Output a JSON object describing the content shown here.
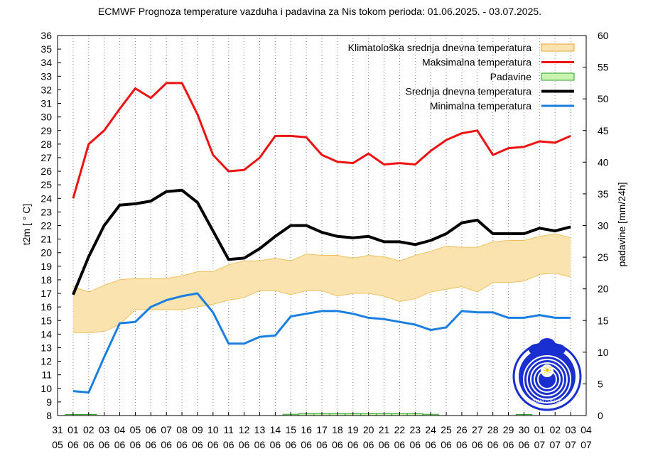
{
  "chart_data": {
    "type": "line",
    "title": "ECMWF Prognoza temperature vazduha i padavina za Nis tokom perioda: 01.06.2025. - 03.07.2025.",
    "ylabel": "t2m [ ° C]",
    "y2label": "padavine [mm/24h]",
    "ylim": [
      8,
      36
    ],
    "y2lim": [
      0,
      60
    ],
    "y_ticks": [
      8,
      9,
      10,
      11,
      12,
      13,
      14,
      15,
      16,
      17,
      18,
      19,
      20,
      21,
      22,
      23,
      24,
      25,
      26,
      27,
      28,
      29,
      30,
      31,
      32,
      33,
      34,
      35,
      36
    ],
    "y2_ticks": [
      0,
      5,
      10,
      15,
      20,
      25,
      30,
      35,
      40,
      45,
      50,
      55,
      60
    ],
    "x_ticks": [
      {
        "day": "31",
        "month": "05"
      },
      {
        "day": "01",
        "month": "06"
      },
      {
        "day": "02",
        "month": "06"
      },
      {
        "day": "03",
        "month": "06"
      },
      {
        "day": "04",
        "month": "06"
      },
      {
        "day": "05",
        "month": "06"
      },
      {
        "day": "06",
        "month": "06"
      },
      {
        "day": "07",
        "month": "06"
      },
      {
        "day": "08",
        "month": "06"
      },
      {
        "day": "09",
        "month": "06"
      },
      {
        "day": "10",
        "month": "06"
      },
      {
        "day": "11",
        "month": "06"
      },
      {
        "day": "12",
        "month": "06"
      },
      {
        "day": "13",
        "month": "06"
      },
      {
        "day": "14",
        "month": "06"
      },
      {
        "day": "15",
        "month": "06"
      },
      {
        "day": "16",
        "month": "06"
      },
      {
        "day": "17",
        "month": "06"
      },
      {
        "day": "18",
        "month": "06"
      },
      {
        "day": "19",
        "month": "06"
      },
      {
        "day": "20",
        "month": "06"
      },
      {
        "day": "21",
        "month": "06"
      },
      {
        "day": "22",
        "month": "06"
      },
      {
        "day": "23",
        "month": "06"
      },
      {
        "day": "24",
        "month": "06"
      },
      {
        "day": "25",
        "month": "06"
      },
      {
        "day": "26",
        "month": "06"
      },
      {
        "day": "27",
        "month": "06"
      },
      {
        "day": "28",
        "month": "06"
      },
      {
        "day": "29",
        "month": "06"
      },
      {
        "day": "30",
        "month": "06"
      },
      {
        "day": "01",
        "month": "07"
      },
      {
        "day": "02",
        "month": "07"
      },
      {
        "day": "03",
        "month": "07"
      },
      {
        "day": "04",
        "month": "07"
      }
    ],
    "legend": [
      {
        "key": "klima",
        "label": "Klimatološka srednja dnevna temperatura",
        "style": "box",
        "color": "#fbe3b0",
        "edge": "#e8a23c"
      },
      {
        "key": "max",
        "label": "Maksimalna temperatura",
        "style": "line",
        "color": "#ee1111"
      },
      {
        "key": "padavine",
        "label": "Padavine",
        "style": "box",
        "color": "#c8f4b0",
        "edge": "#2ca02c"
      },
      {
        "key": "mean",
        "label": "Srednja dnevna temperatura",
        "style": "line",
        "color": "#000000"
      },
      {
        "key": "min",
        "label": "Minimalna temperatura",
        "style": "line",
        "color": "#1a7fe0"
      }
    ],
    "series": [
      {
        "name": "Maksimalna temperatura",
        "key": "max",
        "values": [
          24.0,
          28.0,
          29.0,
          30.6,
          32.1,
          31.4,
          32.5,
          32.5,
          30.2,
          27.2,
          26.0,
          26.1,
          27.0,
          28.6,
          28.6,
          28.5,
          27.2,
          26.7,
          26.6,
          27.3,
          26.5,
          26.6,
          26.5,
          27.5,
          28.3,
          28.8,
          29.0,
          27.2,
          27.7,
          27.8,
          28.2,
          28.1,
          28.6
        ]
      },
      {
        "name": "Srednja dnevna temperatura",
        "key": "mean",
        "values": [
          16.9,
          19.7,
          22.0,
          23.5,
          23.6,
          23.8,
          24.5,
          24.6,
          23.7,
          21.6,
          19.5,
          19.6,
          20.3,
          21.2,
          22.0,
          22.0,
          21.5,
          21.2,
          21.1,
          21.2,
          20.8,
          20.8,
          20.6,
          20.9,
          21.4,
          22.2,
          22.4,
          21.4,
          21.4,
          21.4,
          21.8,
          21.6,
          21.9
        ]
      },
      {
        "name": "Minimalna temperatura",
        "key": "min",
        "values": [
          9.8,
          9.7,
          12.3,
          14.8,
          14.9,
          16.0,
          16.5,
          16.8,
          17.0,
          15.6,
          13.3,
          13.3,
          13.8,
          13.9,
          15.3,
          15.5,
          15.7,
          15.7,
          15.5,
          15.2,
          15.1,
          14.9,
          14.7,
          14.3,
          14.5,
          15.7,
          15.6,
          15.6,
          15.2,
          15.2,
          15.4,
          15.2,
          15.2
        ]
      },
      {
        "name": "Klimatološka srednja dnevna temperatura (gornja granica)",
        "key": "klima_upper",
        "values": [
          17.5,
          17.1,
          17.6,
          18.0,
          18.1,
          18.1,
          18.1,
          18.3,
          18.6,
          18.6,
          19.1,
          19.4,
          19.4,
          19.6,
          19.4,
          19.9,
          19.8,
          19.8,
          19.6,
          19.8,
          19.7,
          19.4,
          19.8,
          20.1,
          20.5,
          20.4,
          20.4,
          20.8,
          20.9,
          20.9,
          21.2,
          21.4,
          21.1
        ]
      },
      {
        "name": "Klimatološka srednja dnevna temperatura (donja granica)",
        "key": "klima_lower",
        "values": [
          14.1,
          14.1,
          14.2,
          14.7,
          15.8,
          15.8,
          15.8,
          15.8,
          16.0,
          16.2,
          16.5,
          16.7,
          17.2,
          17.2,
          16.9,
          17.2,
          17.2,
          16.8,
          17.0,
          17.0,
          16.8,
          16.4,
          16.6,
          17.1,
          17.3,
          17.5,
          17.1,
          17.8,
          17.8,
          17.9,
          18.4,
          18.5,
          18.2
        ]
      },
      {
        "name": "Padavine",
        "key": "padavine",
        "values": [
          0.1,
          0.05,
          0,
          0,
          0,
          0,
          0,
          0,
          0,
          0,
          0,
          0,
          0,
          0,
          0.2,
          0.3,
          0.3,
          0.3,
          0.3,
          0.3,
          0.3,
          0.3,
          0.3,
          0.2,
          0,
          0,
          0,
          0,
          0,
          0.1,
          0,
          0,
          0
        ]
      }
    ],
    "logo_caption": "РХМЗ СРБИЈЕ"
  }
}
